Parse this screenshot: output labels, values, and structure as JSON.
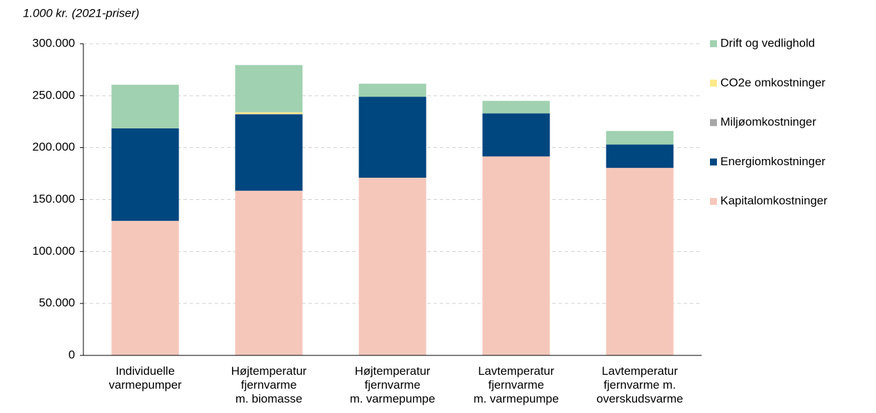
{
  "chart_data": {
    "type": "stacked_bar",
    "y_label": "1.000 kr. (2021-priser)",
    "categories": [
      "Individuelle\nvarmepumper",
      "Højtemperatur\nfjernvarme\nm. biomasse",
      "Højtemperatur\nfjernvarme\nm. varmepumpe",
      "Lavtemperatur\nfjernvarme\nm. varmepumpe",
      "Lavtemperatur\nfjernvarme m.\noverskudsvarme"
    ],
    "series": [
      {
        "name": "Kapitalomkostninger",
        "color": "#f5c7bb",
        "values": [
          129500,
          158500,
          171000,
          191500,
          180500
        ]
      },
      {
        "name": "Energiomkostninger",
        "color": "#00467f",
        "values": [
          89000,
          73500,
          78000,
          41500,
          22500
        ]
      },
      {
        "name": "Miljøomkostninger",
        "color": "#a6a6a6",
        "values": [
          0,
          500,
          0,
          0,
          0
        ]
      },
      {
        "name": "CO2e omkostninger",
        "color": "#fde98b",
        "values": [
          0,
          1500,
          0,
          0,
          0
        ]
      },
      {
        "name": "Drift og vedlighold",
        "color": "#a0d1b0",
        "values": [
          42000,
          45500,
          12500,
          12000,
          13000
        ]
      }
    ],
    "ylim": [
      0,
      300000
    ],
    "yticks": [
      0,
      {
        "value": 50000,
        "label": "50.000"
      },
      {
        "value": 100000,
        "label": "100.000"
      },
      {
        "value": 150000,
        "label": "150.000"
      },
      {
        "value": 200000,
        "label": "200.000"
      },
      {
        "value": 250000,
        "label": "250.000"
      },
      {
        "value": 300000,
        "label": "300.000"
      }
    ],
    "grid": true,
    "legend": "right"
  }
}
